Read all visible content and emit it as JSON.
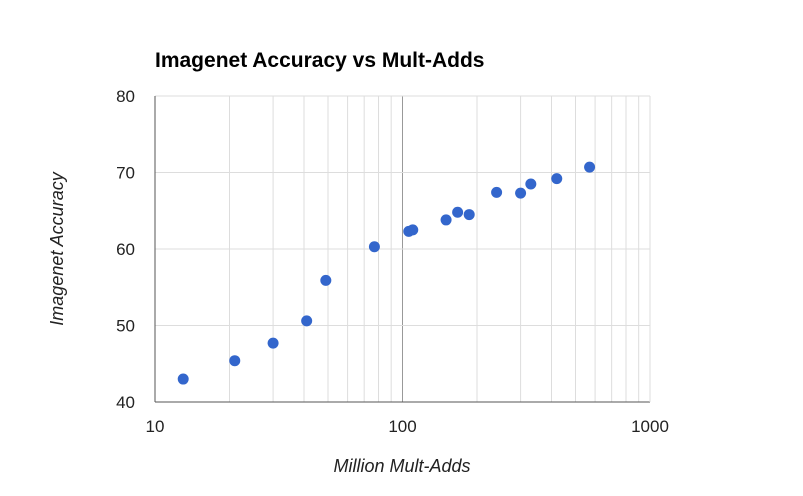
{
  "chart_data": {
    "type": "scatter",
    "title": "Imagenet Accuracy vs Mult-Adds",
    "xlabel": "Million Mult-Adds",
    "ylabel": "Imagenet Accuracy",
    "x_scale": "log",
    "xlim": [
      10,
      1000
    ],
    "ylim": [
      40,
      80
    ],
    "x_ticks": [
      10,
      100,
      1000
    ],
    "y_ticks": [
      40,
      50,
      60,
      70,
      80
    ],
    "x_tick_labels": [
      "10",
      "100",
      "1000"
    ],
    "y_tick_labels": [
      "40",
      "50",
      "60",
      "70",
      "80"
    ],
    "grid": true,
    "legend": "none",
    "point_color": "#3366cc",
    "points": [
      {
        "x": 13,
        "y": 43.0
      },
      {
        "x": 21,
        "y": 45.4
      },
      {
        "x": 30,
        "y": 47.7
      },
      {
        "x": 41,
        "y": 50.6
      },
      {
        "x": 49,
        "y": 55.9
      },
      {
        "x": 77,
        "y": 60.3
      },
      {
        "x": 106,
        "y": 62.3
      },
      {
        "x": 110,
        "y": 62.5
      },
      {
        "x": 150,
        "y": 63.8
      },
      {
        "x": 167,
        "y": 64.8
      },
      {
        "x": 186,
        "y": 64.5
      },
      {
        "x": 240,
        "y": 67.4
      },
      {
        "x": 300,
        "y": 67.3
      },
      {
        "x": 330,
        "y": 68.5
      },
      {
        "x": 420,
        "y": 69.2
      },
      {
        "x": 570,
        "y": 70.7
      }
    ]
  }
}
